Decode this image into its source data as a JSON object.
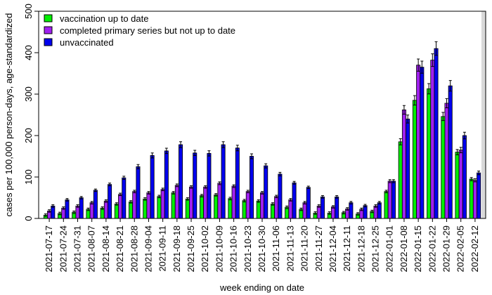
{
  "chart_data": {
    "type": "bar",
    "xlabel": "week ending on date",
    "ylabel": "cases per 100,000 person-days, age-standardized",
    "ylim": [
      0,
      500
    ],
    "yticks": [
      "0",
      "100",
      "200",
      "300",
      "400",
      "500"
    ],
    "legend_position": "top-left",
    "shaded_last_category": true,
    "shade_color": "#d9d9d9",
    "categories": [
      "2021-07-17",
      "2021-07-24",
      "2021-07-31",
      "2021-08-07",
      "2021-08-14",
      "2021-08-21",
      "2021-08-28",
      "2021-09-04",
      "2021-09-11",
      "2021-09-18",
      "2021-09-25",
      "2021-10-02",
      "2021-10-09",
      "2021-10-16",
      "2021-10-23",
      "2021-10-30",
      "2021-11-06",
      "2021-11-13",
      "2021-11-20",
      "2021-11-27",
      "2021-12-04",
      "2021-12-11",
      "2021-12-18",
      "2021-12-25",
      "2022-01-01",
      "2022-01-08",
      "2022-01-15",
      "2022-01-22",
      "2022-01-29",
      "2022-02-05",
      "2022-02-12"
    ],
    "series": [
      {
        "name": "vaccination up to date",
        "color": "#00ee00",
        "values": [
          8,
          12,
          15,
          22,
          25,
          35,
          40,
          47,
          53,
          62,
          47,
          55,
          57,
          48,
          43,
          42,
          35,
          27,
          22,
          13,
          13,
          14,
          11,
          17,
          65,
          185,
          285,
          313,
          246,
          160,
          95
        ]
      },
      {
        "name": "completed primary series but not up to date",
        "color": "#a020f0",
        "values": [
          18,
          25,
          30,
          38,
          42,
          58,
          65,
          62,
          70,
          80,
          76,
          76,
          85,
          78,
          65,
          62,
          53,
          45,
          38,
          30,
          28,
          23,
          22,
          30,
          90,
          262,
          370,
          382,
          278,
          165,
          92
        ]
      },
      {
        "name": "unvaccinated",
        "color": "#0000ee",
        "values": [
          30,
          45,
          50,
          68,
          82,
          98,
          125,
          152,
          163,
          178,
          158,
          157,
          178,
          170,
          150,
          127,
          107,
          86,
          75,
          52,
          52,
          38,
          31,
          38,
          90,
          240,
          365,
          410,
          320,
          200,
          110
        ]
      }
    ]
  }
}
